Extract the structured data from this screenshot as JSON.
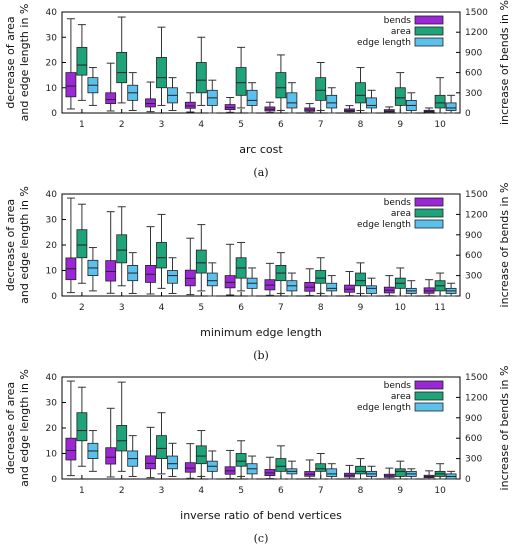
{
  "colors": {
    "bends": "#9c27d6",
    "area": "#1fa37a",
    "edge_length": "#5bc0eb",
    "whisker": "#333333"
  },
  "legend": [
    "bends",
    "area",
    "edge length"
  ],
  "chart_data": [
    {
      "type": "boxplot",
      "panel_label": "(a)",
      "xlabel": "arc cost",
      "ylabel_left": [
        "decrease of area",
        "and edge length in %"
      ],
      "ylabel_right": "increase of bends in %",
      "ylim_left": [
        0,
        40
      ],
      "ylim_right": [
        0,
        1500
      ],
      "yticks_left": [
        0,
        10,
        20,
        30,
        40
      ],
      "yticks_right": [
        0,
        300,
        600,
        900,
        1200,
        1500
      ],
      "categories": [
        "1",
        "2",
        "3",
        "4",
        "5",
        "6",
        "7",
        "8",
        "9",
        "10"
      ],
      "series": [
        {
          "name": "bends",
          "axis": "right",
          "boxes": [
            {
              "min": 60,
              "q1": 240,
              "median": 400,
              "q3": 600,
              "max": 1400
            },
            {
              "min": 30,
              "q1": 140,
              "median": 200,
              "q3": 300,
              "max": 740
            },
            {
              "min": 20,
              "q1": 90,
              "median": 140,
              "q3": 210,
              "max": 460
            },
            {
              "min": 15,
              "q1": 70,
              "median": 105,
              "q3": 160,
              "max": 300
            },
            {
              "min": 10,
              "q1": 50,
              "median": 80,
              "q3": 125,
              "max": 230
            },
            {
              "min": 8,
              "q1": 30,
              "median": 55,
              "q3": 90,
              "max": 160
            },
            {
              "min": 6,
              "q1": 25,
              "median": 45,
              "q3": 75,
              "max": 140
            },
            {
              "min": 5,
              "q1": 20,
              "median": 35,
              "q3": 60,
              "max": 110
            },
            {
              "min": 4,
              "q1": 15,
              "median": 28,
              "q3": 50,
              "max": 90
            },
            {
              "min": 3,
              "q1": 12,
              "median": 22,
              "q3": 40,
              "max": 75
            }
          ]
        },
        {
          "name": "area",
          "axis": "left",
          "boxes": [
            {
              "min": 5,
              "q1": 15,
              "median": 19,
              "q3": 26,
              "max": 35
            },
            {
              "min": 4,
              "q1": 12,
              "median": 16,
              "q3": 24,
              "max": 38
            },
            {
              "min": 3,
              "q1": 10,
              "median": 14,
              "q3": 22,
              "max": 34
            },
            {
              "min": 3,
              "q1": 8,
              "median": 13,
              "q3": 20,
              "max": 30
            },
            {
              "min": 2,
              "q1": 7,
              "median": 12,
              "q3": 18,
              "max": 26
            },
            {
              "min": 1,
              "q1": 6,
              "median": 10,
              "q3": 16,
              "max": 23
            },
            {
              "min": 1,
              "q1": 5,
              "median": 9,
              "q3": 14,
              "max": 20
            },
            {
              "min": 1,
              "q1": 4,
              "median": 7,
              "q3": 12,
              "max": 18
            },
            {
              "min": 0,
              "q1": 3,
              "median": 6,
              "q3": 10,
              "max": 16
            },
            {
              "min": 0,
              "q1": 2,
              "median": 4,
              "q3": 7,
              "max": 14
            }
          ]
        },
        {
          "name": "edge length",
          "axis": "left",
          "boxes": [
            {
              "min": 3,
              "q1": 8,
              "median": 11,
              "q3": 14,
              "max": 18
            },
            {
              "min": 1,
              "q1": 5,
              "median": 8,
              "q3": 11,
              "max": 16
            },
            {
              "min": 1,
              "q1": 4,
              "median": 7,
              "q3": 10,
              "max": 14
            },
            {
              "min": 0,
              "q1": 3,
              "median": 6,
              "q3": 9,
              "max": 13
            },
            {
              "min": 0,
              "q1": 3,
              "median": 5,
              "q3": 9,
              "max": 12
            },
            {
              "min": 0,
              "q1": 2,
              "median": 4,
              "q3": 8,
              "max": 12
            },
            {
              "min": 0,
              "q1": 2,
              "median": 4,
              "q3": 7,
              "max": 10
            },
            {
              "min": 0,
              "q1": 2,
              "median": 3,
              "q3": 6,
              "max": 9
            },
            {
              "min": 0,
              "q1": 1,
              "median": 3,
              "q3": 5,
              "max": 8
            },
            {
              "min": 0,
              "q1": 1,
              "median": 2,
              "q3": 4,
              "max": 7
            }
          ]
        }
      ]
    },
    {
      "type": "boxplot",
      "panel_label": "(b)",
      "xlabel": "minimum edge length",
      "ylabel_left": [
        "decrease of area",
        "and edge length in %"
      ],
      "ylabel_right": "increase of bends in %",
      "ylim_left": [
        0,
        40
      ],
      "ylim_right": [
        0,
        1500
      ],
      "yticks_left": [
        0,
        10,
        20,
        30,
        40
      ],
      "yticks_right": [
        0,
        300,
        600,
        900,
        1200,
        1500
      ],
      "categories": [
        "2",
        "3",
        "4",
        "5",
        "6",
        "7",
        "8",
        "9",
        "10",
        "11"
      ],
      "series": [
        {
          "name": "bends",
          "axis": "right",
          "boxes": [
            {
              "min": 50,
              "q1": 240,
              "median": 400,
              "q3": 560,
              "max": 1440
            },
            {
              "min": 40,
              "q1": 220,
              "median": 360,
              "q3": 520,
              "max": 1240
            },
            {
              "min": 30,
              "q1": 200,
              "median": 320,
              "q3": 450,
              "max": 1020
            },
            {
              "min": 20,
              "q1": 150,
              "median": 260,
              "q3": 380,
              "max": 850
            },
            {
              "min": 15,
              "q1": 120,
              "median": 200,
              "q3": 300,
              "max": 760
            },
            {
              "min": 10,
              "q1": 90,
              "median": 160,
              "q3": 240,
              "max": 480
            },
            {
              "min": 8,
              "q1": 70,
              "median": 130,
              "q3": 200,
              "max": 400
            },
            {
              "min": 6,
              "q1": 55,
              "median": 100,
              "q3": 160,
              "max": 360
            },
            {
              "min": 5,
              "q1": 45,
              "median": 85,
              "q3": 130,
              "max": 300
            },
            {
              "min": 4,
              "q1": 40,
              "median": 75,
              "q3": 120,
              "max": 240
            }
          ]
        },
        {
          "name": "area",
          "axis": "left",
          "boxes": [
            {
              "min": 5,
              "q1": 15,
              "median": 20,
              "q3": 26,
              "max": 36
            },
            {
              "min": 4,
              "q1": 13,
              "median": 18,
              "q3": 24,
              "max": 35
            },
            {
              "min": 3,
              "q1": 11,
              "median": 15,
              "q3": 21,
              "max": 32
            },
            {
              "min": 2,
              "q1": 9,
              "median": 13,
              "q3": 18,
              "max": 28
            },
            {
              "min": 2,
              "q1": 7,
              "median": 11,
              "q3": 15,
              "max": 21
            },
            {
              "min": 1,
              "q1": 6,
              "median": 9,
              "q3": 12,
              "max": 17
            },
            {
              "min": 1,
              "q1": 5,
              "median": 7,
              "q3": 10,
              "max": 15
            },
            {
              "min": 1,
              "q1": 4,
              "median": 6,
              "q3": 9,
              "max": 13
            },
            {
              "min": 0,
              "q1": 3,
              "median": 5,
              "q3": 7,
              "max": 11
            },
            {
              "min": 0,
              "q1": 2,
              "median": 4,
              "q3": 6,
              "max": 9
            }
          ]
        },
        {
          "name": "edge length",
          "axis": "left",
          "boxes": [
            {
              "min": 2,
              "q1": 8,
              "median": 11,
              "q3": 14,
              "max": 19
            },
            {
              "min": 1,
              "q1": 6,
              "median": 9,
              "q3": 12,
              "max": 17
            },
            {
              "min": 1,
              "q1": 5,
              "median": 8,
              "q3": 10,
              "max": 15
            },
            {
              "min": 0,
              "q1": 4,
              "median": 6,
              "q3": 9,
              "max": 13
            },
            {
              "min": 0,
              "q1": 3,
              "median": 5,
              "q3": 7,
              "max": 11
            },
            {
              "min": 0,
              "q1": 2,
              "median": 4,
              "q3": 6,
              "max": 9
            },
            {
              "min": 0,
              "q1": 2,
              "median": 3,
              "q3": 5,
              "max": 8
            },
            {
              "min": 0,
              "q1": 1,
              "median": 3,
              "q3": 4,
              "max": 7
            },
            {
              "min": 0,
              "q1": 1,
              "median": 2,
              "q3": 3,
              "max": 6
            },
            {
              "min": 0,
              "q1": 1,
              "median": 2,
              "q3": 3,
              "max": 5
            }
          ]
        }
      ]
    },
    {
      "type": "boxplot",
      "panel_label": "(c)",
      "xlabel": "inverse ratio of bend vertices",
      "ylabel_left": [
        "decrease of area",
        "and edge length in %"
      ],
      "ylabel_right": "increase of bends in %",
      "ylim_left": [
        0,
        40
      ],
      "ylim_right": [
        0,
        1500
      ],
      "yticks_left": [
        0,
        10,
        20,
        30,
        40
      ],
      "yticks_right": [
        0,
        300,
        600,
        900,
        1200,
        1500
      ],
      "categories": [
        "1",
        "2",
        "3",
        "4",
        "5",
        "6",
        "7",
        "8",
        "9",
        "10"
      ],
      "series": [
        {
          "name": "bends",
          "axis": "right",
          "boxes": [
            {
              "min": 50,
              "q1": 280,
              "median": 420,
              "q3": 600,
              "max": 1440
            },
            {
              "min": 30,
              "q1": 220,
              "median": 320,
              "q3": 460,
              "max": 1040
            },
            {
              "min": 20,
              "q1": 150,
              "median": 230,
              "q3": 340,
              "max": 760
            },
            {
              "min": 10,
              "q1": 100,
              "median": 160,
              "q3": 240,
              "max": 520
            },
            {
              "min": 8,
              "q1": 70,
              "median": 120,
              "q3": 180,
              "max": 420
            },
            {
              "min": 6,
              "q1": 50,
              "median": 90,
              "q3": 140,
              "max": 320
            },
            {
              "min": 5,
              "q1": 40,
              "median": 70,
              "q3": 110,
              "max": 280
            },
            {
              "min": 4,
              "q1": 30,
              "median": 55,
              "q3": 85,
              "max": 200
            },
            {
              "min": 3,
              "q1": 25,
              "median": 45,
              "q3": 70,
              "max": 160
            },
            {
              "min": 2,
              "q1": 20,
              "median": 35,
              "q3": 55,
              "max": 120
            }
          ]
        },
        {
          "name": "area",
          "axis": "left",
          "boxes": [
            {
              "min": 5,
              "q1": 15,
              "median": 19,
              "q3": 26,
              "max": 36
            },
            {
              "min": 3,
              "q1": 11,
              "median": 15,
              "q3": 21,
              "max": 38
            },
            {
              "min": 2,
              "q1": 8,
              "median": 12,
              "q3": 17,
              "max": 26
            },
            {
              "min": 1,
              "q1": 6,
              "median": 9,
              "q3": 13,
              "max": 19
            },
            {
              "min": 1,
              "q1": 5,
              "median": 7,
              "q3": 10,
              "max": 15
            },
            {
              "min": 0,
              "q1": 3,
              "median": 5,
              "q3": 8,
              "max": 13
            },
            {
              "min": 0,
              "q1": 3,
              "median": 4,
              "q3": 6,
              "max": 10
            },
            {
              "min": 0,
              "q1": 2,
              "median": 3,
              "q3": 5,
              "max": 8
            },
            {
              "min": 0,
              "q1": 1,
              "median": 3,
              "q3": 4,
              "max": 7
            },
            {
              "min": 0,
              "q1": 1,
              "median": 2,
              "q3": 3,
              "max": 6
            }
          ]
        },
        {
          "name": "edge length",
          "axis": "left",
          "boxes": [
            {
              "min": 3,
              "q1": 8,
              "median": 11,
              "q3": 14,
              "max": 19
            },
            {
              "min": 1,
              "q1": 5,
              "median": 8,
              "q3": 11,
              "max": 17
            },
            {
              "min": 1,
              "q1": 4,
              "median": 6,
              "q3": 9,
              "max": 14
            },
            {
              "min": 0,
              "q1": 3,
              "median": 5,
              "q3": 7,
              "max": 11
            },
            {
              "min": 0,
              "q1": 2,
              "median": 4,
              "q3": 6,
              "max": 9
            },
            {
              "min": 0,
              "q1": 2,
              "median": 3,
              "q3": 4,
              "max": 7
            },
            {
              "min": 0,
              "q1": 1,
              "median": 2,
              "q3": 4,
              "max": 6
            },
            {
              "min": 0,
              "q1": 1,
              "median": 2,
              "q3": 3,
              "max": 5
            },
            {
              "min": 0,
              "q1": 1,
              "median": 2,
              "q3": 3,
              "max": 4
            },
            {
              "min": 0,
              "q1": 0,
              "median": 1,
              "q3": 2,
              "max": 3
            }
          ]
        }
      ]
    }
  ]
}
